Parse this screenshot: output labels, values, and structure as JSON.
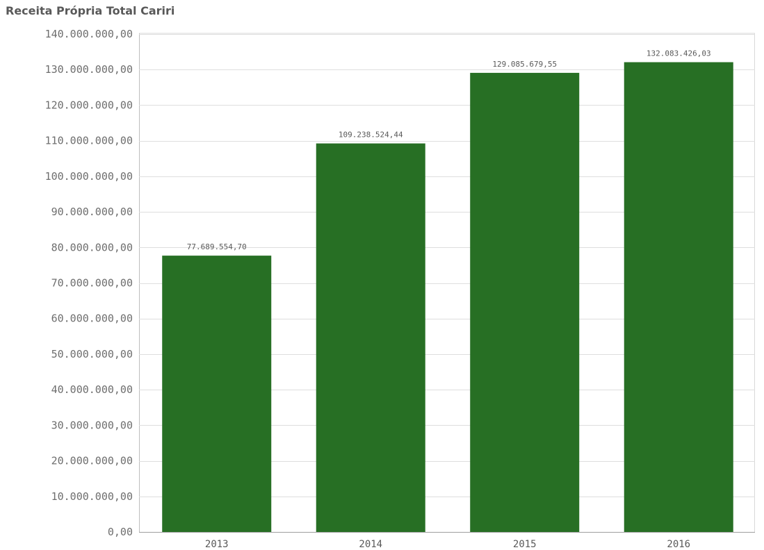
{
  "chart_data": {
    "type": "bar",
    "title": "Receita Própria Total Cariri",
    "xlabel": "",
    "ylabel": "",
    "categories": [
      "2013",
      "2014",
      "2015",
      "2016"
    ],
    "values": [
      77689554.7,
      109238524.44,
      129085679.55,
      132083426.03
    ],
    "data_labels": [
      "77.689.554,70",
      "109.238.524,44",
      "129.085.679,55",
      "132.083.426,03"
    ],
    "ylim": [
      0,
      140000000
    ],
    "yticks": [
      0,
      10000000,
      20000000,
      30000000,
      40000000,
      50000000,
      60000000,
      70000000,
      80000000,
      90000000,
      100000000,
      110000000,
      120000000,
      130000000,
      140000000
    ],
    "ytick_labels": [
      "0,00",
      "10.000.000,00",
      "20.000.000,00",
      "30.000.000,00",
      "40.000.000,00",
      "50.000.000,00",
      "60.000.000,00",
      "70.000.000,00",
      "80.000.000,00",
      "90.000.000,00",
      "100.000.000,00",
      "110.000.000,00",
      "120.000.000,00",
      "130.000.000,00",
      "140.000.000,00"
    ],
    "grid": true,
    "legend": "none",
    "bar_color": "#276f24"
  }
}
